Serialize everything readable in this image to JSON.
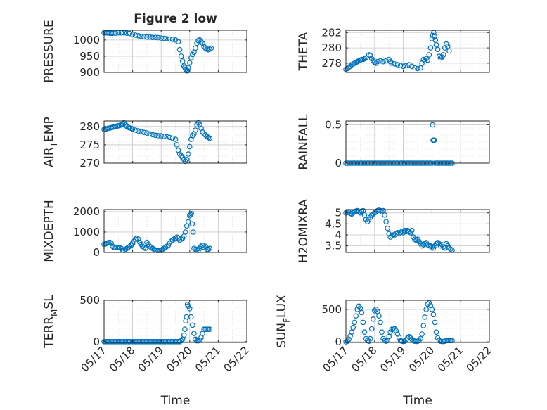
{
  "figure": {
    "title": "Figure 2 low",
    "xlabel": "Time"
  },
  "chart_data": [
    {
      "id": "pressure",
      "type": "scatter",
      "title": "Figure 2 low",
      "ylabel": "PRESSURE",
      "ylim": [
        900,
        1030
      ],
      "yticks": [
        "900",
        "950",
        "1000"
      ],
      "ytick_values": [
        900,
        950,
        1000
      ],
      "xlim": [
        0,
        5
      ],
      "grid": true,
      "x": [
        0.0,
        0.05,
        0.1,
        0.15,
        0.2,
        0.25,
        0.3,
        0.4,
        0.5,
        0.6,
        0.7,
        0.8,
        0.9,
        1.0,
        1.1,
        1.2,
        1.3,
        1.4,
        1.5,
        1.6,
        1.7,
        1.8,
        1.9,
        2.0,
        2.1,
        2.2,
        2.3,
        2.4,
        2.5,
        2.6,
        2.65,
        2.7,
        2.75,
        2.8,
        2.83,
        2.86,
        2.89,
        2.92,
        2.95,
        3.0,
        3.05,
        3.1,
        3.15,
        3.2,
        3.25,
        3.3,
        3.35,
        3.4,
        3.45,
        3.5,
        3.55,
        3.6,
        3.65,
        3.7,
        3.75
      ],
      "y": [
        1022,
        1022,
        1022,
        1022,
        1021,
        1021,
        1021,
        1021,
        1022,
        1022,
        1022,
        1021,
        1020,
        1017,
        1015,
        1013,
        1011,
        1010,
        1009,
        1009,
        1008,
        1008,
        1007,
        1006,
        1005,
        1004,
        1003,
        1002,
        1000,
        995,
        970,
        950,
        935,
        920,
        915,
        910,
        905,
        905,
        915,
        930,
        945,
        955,
        962,
        975,
        990,
        998,
        1000,
        995,
        990,
        980,
        975,
        972,
        970,
        972,
        975
      ]
    },
    {
      "id": "theta",
      "type": "scatter",
      "ylabel": "THETA",
      "ylim": [
        276.8,
        282.3
      ],
      "yticks": [
        "278",
        "280",
        "282"
      ],
      "ytick_values": [
        278,
        280,
        282
      ],
      "xlim": [
        0,
        5
      ],
      "grid": true,
      "x": [
        0.0,
        0.05,
        0.1,
        0.15,
        0.2,
        0.25,
        0.3,
        0.35,
        0.4,
        0.45,
        0.5,
        0.55,
        0.6,
        0.65,
        0.7,
        0.8,
        0.85,
        0.9,
        0.95,
        1.0,
        1.05,
        1.1,
        1.2,
        1.3,
        1.4,
        1.5,
        1.55,
        1.6,
        1.7,
        1.8,
        1.9,
        2.0,
        2.1,
        2.2,
        2.3,
        2.4,
        2.5,
        2.6,
        2.65,
        2.7,
        2.75,
        2.8,
        2.85,
        2.9,
        2.95,
        3.0,
        3.03,
        3.06,
        3.09,
        3.12,
        3.15,
        3.2,
        3.25,
        3.3,
        3.35,
        3.4,
        3.45,
        3.5,
        3.55,
        3.6
      ],
      "y": [
        277.2,
        277.3,
        277.5,
        277.6,
        277.8,
        277.9,
        278.0,
        278.1,
        278.2,
        278.3,
        278.4,
        278.5,
        278.5,
        278.6,
        278.7,
        279.1,
        279.0,
        278.6,
        278.3,
        278.1,
        278.0,
        278.2,
        278.3,
        278.2,
        278.3,
        278.5,
        278.2,
        278.0,
        277.9,
        277.8,
        277.7,
        277.6,
        277.7,
        277.8,
        277.6,
        277.4,
        277.3,
        277.4,
        278.0,
        278.5,
        278.3,
        278.6,
        278.4,
        279.1,
        280.0,
        281.2,
        281.6,
        282.0,
        281.5,
        281.0,
        280.4,
        279.8,
        278.9,
        278.7,
        278.8,
        279.1,
        280.0,
        280.5,
        280.2,
        279.6
      ]
    },
    {
      "id": "air_temp",
      "type": "scatter",
      "ylabel_main": "AIR",
      "ylabel_sub": "T",
      "ylabel_rest": "EMP",
      "ylim": [
        270,
        281.5
      ],
      "yticks": [
        "270",
        "275",
        "280"
      ],
      "ytick_values": [
        270,
        275,
        280
      ],
      "xlim": [
        0,
        5
      ],
      "grid": true,
      "x": [
        0.0,
        0.05,
        0.1,
        0.15,
        0.2,
        0.25,
        0.3,
        0.35,
        0.4,
        0.45,
        0.5,
        0.55,
        0.6,
        0.65,
        0.7,
        0.75,
        0.8,
        0.85,
        0.9,
        0.95,
        1.0,
        1.1,
        1.2,
        1.3,
        1.4,
        1.5,
        1.6,
        1.7,
        1.8,
        1.9,
        2.0,
        2.1,
        2.2,
        2.3,
        2.4,
        2.5,
        2.55,
        2.6,
        2.65,
        2.7,
        2.75,
        2.8,
        2.85,
        2.9,
        2.95,
        3.0,
        3.05,
        3.1,
        3.15,
        3.2,
        3.25,
        3.3,
        3.35,
        3.4,
        3.45,
        3.5,
        3.55,
        3.6,
        3.65,
        3.7
      ],
      "y": [
        279.2,
        279.3,
        279.4,
        279.5,
        279.6,
        279.7,
        279.8,
        279.9,
        280.0,
        280.1,
        280.2,
        280.3,
        280.5,
        280.7,
        281.0,
        280.5,
        280.0,
        279.8,
        279.6,
        279.5,
        279.3,
        279.0,
        278.8,
        278.6,
        278.4,
        278.2,
        278.0,
        277.8,
        277.6,
        277.5,
        277.5,
        277.3,
        277.2,
        277.0,
        276.8,
        276.5,
        275.0,
        273.5,
        272.5,
        272.0,
        271.5,
        271.0,
        270.5,
        271.0,
        272.5,
        274.5,
        276.5,
        277.5,
        278.0,
        279.0,
        280.5,
        281.0,
        280.5,
        279.5,
        278.5,
        278.0,
        277.7,
        277.3,
        277.0,
        276.8
      ]
    },
    {
      "id": "rainfall",
      "type": "scatter",
      "ylabel": "RAINFALL",
      "ylim": [
        0,
        0.55
      ],
      "yticks": [
        "0",
        "0.5"
      ],
      "ytick_values": [
        0,
        0.5
      ],
      "xlim": [
        0,
        5
      ],
      "grid": true,
      "x": [
        0.0,
        0.05,
        0.1,
        0.15,
        0.2,
        0.25,
        0.3,
        0.35,
        0.4,
        0.45,
        0.5,
        0.55,
        0.6,
        0.65,
        0.7,
        0.75,
        0.8,
        0.85,
        0.9,
        0.95,
        1.0,
        1.05,
        1.1,
        1.15,
        1.2,
        1.25,
        1.3,
        1.35,
        1.4,
        1.45,
        1.5,
        1.55,
        1.6,
        1.65,
        1.7,
        1.75,
        1.8,
        1.85,
        1.9,
        1.95,
        2.0,
        2.05,
        2.1,
        2.15,
        2.2,
        2.25,
        2.3,
        2.35,
        2.4,
        2.45,
        2.5,
        2.55,
        2.6,
        2.65,
        2.7,
        2.75,
        2.8,
        2.85,
        2.9,
        2.95,
        3.0,
        3.02,
        3.04,
        3.06,
        3.08,
        3.1,
        3.15,
        3.2,
        3.25,
        3.3,
        3.35,
        3.4,
        3.45,
        3.5,
        3.55,
        3.6,
        3.65,
        3.7
      ],
      "y": [
        0,
        0,
        0,
        0,
        0,
        0,
        0,
        0,
        0,
        0,
        0,
        0,
        0,
        0,
        0,
        0,
        0,
        0,
        0,
        0,
        0,
        0,
        0,
        0,
        0,
        0,
        0,
        0,
        0,
        0,
        0,
        0,
        0,
        0,
        0,
        0,
        0,
        0,
        0,
        0,
        0,
        0,
        0,
        0,
        0,
        0,
        0,
        0,
        0,
        0,
        0,
        0,
        0,
        0,
        0,
        0,
        0,
        0,
        0,
        0,
        0,
        0.5,
        0.3,
        0.3,
        0.3,
        0,
        0,
        0,
        0,
        0,
        0,
        0,
        0,
        0,
        0,
        0,
        0,
        0
      ]
    },
    {
      "id": "mixdepth",
      "type": "scatter",
      "ylabel": "MIXDEPTH",
      "ylim": [
        0,
        2100
      ],
      "yticks": [
        "0",
        "1000",
        "2000"
      ],
      "ytick_values": [
        0,
        1000,
        2000
      ],
      "xlim": [
        0,
        5
      ],
      "grid": true,
      "x": [
        0.0,
        0.05,
        0.1,
        0.15,
        0.2,
        0.25,
        0.3,
        0.35,
        0.4,
        0.45,
        0.5,
        0.55,
        0.6,
        0.65,
        0.7,
        0.75,
        0.8,
        0.85,
        0.9,
        0.95,
        1.0,
        1.05,
        1.1,
        1.15,
        1.2,
        1.25,
        1.3,
        1.35,
        1.4,
        1.45,
        1.5,
        1.55,
        1.6,
        1.65,
        1.7,
        1.75,
        1.8,
        1.85,
        1.9,
        1.95,
        2.0,
        2.05,
        2.1,
        2.15,
        2.2,
        2.25,
        2.3,
        2.35,
        2.4,
        2.45,
        2.5,
        2.55,
        2.6,
        2.65,
        2.7,
        2.75,
        2.8,
        2.85,
        2.9,
        2.95,
        3.0,
        3.03,
        3.06,
        3.09,
        3.12,
        3.15,
        3.2,
        3.25,
        3.3,
        3.35,
        3.4,
        3.45,
        3.5,
        3.55,
        3.6,
        3.65,
        3.7
      ],
      "y": [
        400,
        420,
        450,
        480,
        500,
        450,
        300,
        250,
        230,
        250,
        240,
        230,
        200,
        120,
        100,
        150,
        200,
        250,
        300,
        350,
        450,
        550,
        650,
        700,
        650,
        500,
        400,
        300,
        250,
        200,
        500,
        400,
        300,
        250,
        200,
        150,
        120,
        100,
        100,
        100,
        100,
        150,
        200,
        250,
        300,
        350,
        450,
        550,
        600,
        650,
        700,
        750,
        700,
        600,
        650,
        700,
        800,
        1000,
        1300,
        1500,
        1800,
        1850,
        1900,
        1400,
        1000,
        200,
        150,
        150,
        100,
        200,
        300,
        350,
        250,
        300,
        150,
        150,
        200
      ]
    },
    {
      "id": "h2omixra",
      "type": "scatter",
      "ylabel": "H2OMIXRA",
      "ylim": [
        3.2,
        5.15
      ],
      "yticks": [
        "3.5",
        "4",
        "4.5",
        "5"
      ],
      "ytick_values": [
        3.5,
        4,
        4.5,
        5
      ],
      "xlim": [
        0,
        5
      ],
      "grid": true,
      "x": [
        0.0,
        0.05,
        0.1,
        0.15,
        0.2,
        0.25,
        0.3,
        0.35,
        0.4,
        0.45,
        0.5,
        0.55,
        0.6,
        0.65,
        0.7,
        0.75,
        0.8,
        0.85,
        0.9,
        0.95,
        1.0,
        1.05,
        1.1,
        1.15,
        1.2,
        1.25,
        1.3,
        1.35,
        1.4,
        1.45,
        1.5,
        1.55,
        1.6,
        1.65,
        1.7,
        1.75,
        1.8,
        1.85,
        1.9,
        1.95,
        2.0,
        2.05,
        2.1,
        2.15,
        2.2,
        2.25,
        2.3,
        2.35,
        2.4,
        2.45,
        2.5,
        2.55,
        2.6,
        2.65,
        2.7,
        2.75,
        2.8,
        2.85,
        2.9,
        2.95,
        3.0,
        3.05,
        3.1,
        3.15,
        3.2,
        3.25,
        3.3,
        3.35,
        3.4,
        3.45,
        3.5,
        3.55,
        3.6,
        3.65,
        3.7
      ],
      "y": [
        5.0,
        5.02,
        5.05,
        4.98,
        4.95,
        5.0,
        5.05,
        5.08,
        5.1,
        5.05,
        5.0,
        5.08,
        5.1,
        4.9,
        4.7,
        4.6,
        4.7,
        4.8,
        4.9,
        4.95,
        5.0,
        5.05,
        5.1,
        5.12,
        5.1,
        5.05,
        5.1,
        4.9,
        4.6,
        4.3,
        4.05,
        3.9,
        3.95,
        4.0,
        4.0,
        4.05,
        4.1,
        4.05,
        4.1,
        4.15,
        4.1,
        4.2,
        4.15,
        4.2,
        4.15,
        4.1,
        4.2,
        3.9,
        3.8,
        3.75,
        3.8,
        3.7,
        3.6,
        3.5,
        3.55,
        3.6,
        3.65,
        3.55,
        3.5,
        3.5,
        3.45,
        3.4,
        3.5,
        3.6,
        3.65,
        3.6,
        3.5,
        3.55,
        3.45,
        3.4,
        3.6,
        3.5,
        3.4,
        3.35,
        3.3
      ]
    },
    {
      "id": "terr_msl",
      "type": "scatter",
      "ylabel_main": "TERR",
      "ylabel_sub": "M",
      "ylabel_rest": "SL",
      "ylim": [
        -10,
        500
      ],
      "yticks": [
        "0",
        "500"
      ],
      "ytick_values": [
        0,
        500
      ],
      "xlim": [
        0,
        5
      ],
      "grid": true,
      "xticks": [
        "05/17",
        "05/18",
        "05/19",
        "05/20",
        "05/21",
        "05/22"
      ],
      "xtick_values": [
        0,
        1,
        2,
        3,
        4,
        5
      ],
      "xlabel": "Time",
      "x": [
        0.0,
        0.05,
        0.1,
        0.15,
        0.2,
        0.25,
        0.3,
        0.35,
        0.4,
        0.45,
        0.5,
        0.55,
        0.6,
        0.65,
        0.7,
        0.75,
        0.8,
        0.85,
        0.9,
        0.95,
        1.0,
        1.05,
        1.1,
        1.15,
        1.2,
        1.25,
        1.3,
        1.35,
        1.4,
        1.45,
        1.5,
        1.55,
        1.6,
        1.65,
        1.7,
        1.75,
        1.8,
        1.85,
        1.9,
        1.95,
        2.0,
        2.05,
        2.1,
        2.15,
        2.2,
        2.25,
        2.3,
        2.35,
        2.4,
        2.45,
        2.5,
        2.55,
        2.6,
        2.65,
        2.7,
        2.75,
        2.8,
        2.83,
        2.86,
        2.89,
        2.92,
        2.95,
        3.0,
        3.05,
        3.1,
        3.15,
        3.2,
        3.25,
        3.3,
        3.35,
        3.4,
        3.45,
        3.5,
        3.55,
        3.6,
        3.65,
        3.7
      ],
      "y": [
        0,
        0,
        0,
        0,
        0,
        0,
        0,
        0,
        0,
        0,
        0,
        0,
        0,
        0,
        0,
        0,
        0,
        0,
        0,
        0,
        0,
        0,
        0,
        0,
        0,
        0,
        0,
        0,
        0,
        0,
        0,
        0,
        0,
        0,
        0,
        0,
        0,
        0,
        0,
        0,
        0,
        0,
        0,
        0,
        0,
        0,
        0,
        0,
        0,
        0,
        0,
        0,
        0,
        0,
        10,
        30,
        80,
        150,
        250,
        300,
        450,
        430,
        400,
        300,
        200,
        100,
        30,
        10,
        10,
        20,
        50,
        100,
        150,
        150,
        150,
        150,
        150
      ]
    },
    {
      "id": "sun_flux",
      "type": "scatter",
      "ylabel_main": "SUN",
      "ylabel_sub": "F",
      "ylabel_rest": "LUX",
      "ylim": [
        -10,
        640
      ],
      "yticks": [
        "0",
        "500"
      ],
      "ytick_values": [
        0,
        500
      ],
      "xlim": [
        0,
        5
      ],
      "grid": true,
      "xticks": [
        "05/17",
        "05/18",
        "05/19",
        "05/20",
        "05/21",
        "05/22"
      ],
      "xtick_values": [
        0,
        1,
        2,
        3,
        4,
        5
      ],
      "xlabel": "Time",
      "x": [
        0.0,
        0.05,
        0.1,
        0.15,
        0.2,
        0.25,
        0.3,
        0.35,
        0.4,
        0.45,
        0.5,
        0.55,
        0.6,
        0.65,
        0.7,
        0.75,
        0.8,
        0.85,
        0.9,
        0.95,
        1.0,
        1.05,
        1.1,
        1.15,
        1.2,
        1.25,
        1.3,
        1.35,
        1.4,
        1.45,
        1.5,
        1.55,
        1.6,
        1.65,
        1.7,
        1.75,
        1.8,
        1.85,
        1.9,
        1.95,
        2.0,
        2.05,
        2.1,
        2.15,
        2.2,
        2.25,
        2.3,
        2.35,
        2.4,
        2.45,
        2.5,
        2.55,
        2.6,
        2.65,
        2.7,
        2.75,
        2.8,
        2.85,
        2.9,
        2.95,
        3.0,
        3.05,
        3.1,
        3.15,
        3.2,
        3.25,
        3.3,
        3.35,
        3.4,
        3.45,
        3.5,
        3.55,
        3.6,
        3.65,
        3.7
      ],
      "y": [
        0,
        10,
        40,
        90,
        150,
        220,
        300,
        400,
        500,
        550,
        520,
        450,
        300,
        150,
        50,
        20,
        10,
        50,
        200,
        350,
        480,
        500,
        470,
        400,
        300,
        150,
        50,
        20,
        10,
        20,
        80,
        150,
        190,
        210,
        200,
        170,
        120,
        70,
        20,
        10,
        5,
        10,
        30,
        60,
        80,
        60,
        40,
        20,
        10,
        5,
        10,
        20,
        50,
        120,
        250,
        380,
        500,
        580,
        600,
        560,
        500,
        420,
        300,
        150,
        60,
        20,
        10,
        5,
        5,
        10,
        20,
        20,
        20,
        20,
        20
      ]
    }
  ]
}
